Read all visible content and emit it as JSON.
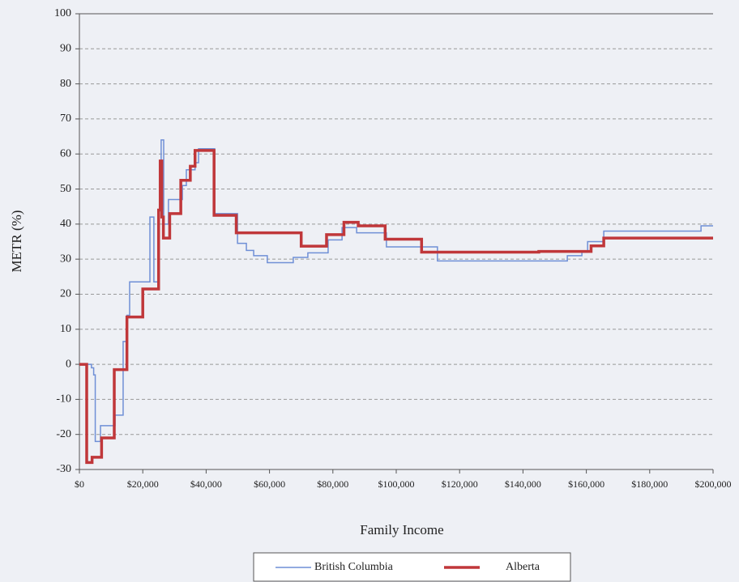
{
  "chart_data": {
    "type": "line",
    "step": "post",
    "xlabel": "Family Income",
    "ylabel": "METR (%)",
    "xlim": [
      0,
      200000
    ],
    "ylim": [
      -30,
      100
    ],
    "xticks": [
      {
        "value": 0,
        "label": "$0"
      },
      {
        "value": 20000,
        "label": "$20,000"
      },
      {
        "value": 40000,
        "label": "$40,000"
      },
      {
        "value": 60000,
        "label": "$60,000"
      },
      {
        "value": 80000,
        "label": "$80,000"
      },
      {
        "value": 100000,
        "label": "$100,000"
      },
      {
        "value": 120000,
        "label": "$120,000"
      },
      {
        "value": 140000,
        "label": "$140,000"
      },
      {
        "value": 160000,
        "label": "$160,000"
      },
      {
        "value": 180000,
        "label": "$180,000"
      },
      {
        "value": 200000,
        "label": "$200,000"
      }
    ],
    "yticks": [
      -30,
      -20,
      -10,
      0,
      10,
      20,
      30,
      40,
      50,
      60,
      70,
      80,
      90,
      100
    ],
    "grid": true,
    "legend": "bottom",
    "series": [
      {
        "name": "British Columbia",
        "color": "#6f8fd6",
        "x": [
          0,
          3800,
          4500,
          5000,
          6650,
          11250,
          13800,
          15000,
          15850,
          22250,
          23500,
          25000,
          25800,
          26600,
          28100,
          32500,
          33750,
          36500,
          37000,
          37600,
          42700,
          49900,
          52700,
          55000,
          59300,
          67500,
          72100,
          78500,
          82900,
          87500,
          96900,
          113000,
          154000,
          158600,
          160400,
          165500,
          196200,
          200000
        ],
        "values": [
          0,
          -1,
          -3,
          -22,
          -17.5,
          -14.5,
          6.5,
          14,
          23.5,
          42,
          23.5,
          44,
          64,
          40,
          47,
          51,
          55.5,
          57.5,
          57.5,
          61.5,
          43,
          34.5,
          32.5,
          31,
          29,
          30.5,
          31.8,
          35.5,
          39,
          37.5,
          33.5,
          29.5,
          31,
          32,
          35,
          38,
          39.5,
          39.5
        ]
      },
      {
        "name": "Alberta",
        "color": "#c0373a",
        "x": [
          0,
          2300,
          4000,
          7000,
          11000,
          15000,
          20000,
          25000,
          25500,
          26000,
          26500,
          28500,
          32000,
          35000,
          36500,
          42500,
          49500,
          70000,
          78000,
          83500,
          88000,
          96500,
          108000,
          145000,
          161500,
          165500,
          200000
        ],
        "values": [
          0,
          -28,
          -26.5,
          -21,
          -1.5,
          13.5,
          21.5,
          44,
          58,
          42,
          36,
          43,
          52.5,
          56.5,
          61,
          42.5,
          37.5,
          33.7,
          37,
          40.5,
          39.5,
          35.7,
          32,
          32.2,
          33.8,
          36,
          36
        ]
      }
    ]
  }
}
